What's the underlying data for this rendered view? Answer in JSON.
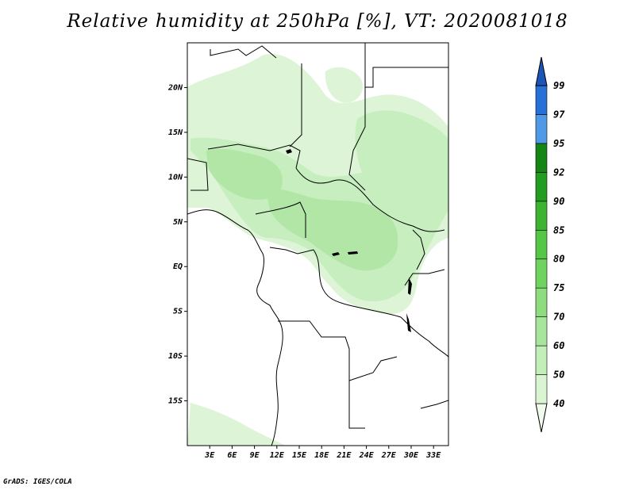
{
  "title": "Relative humidity at 250hPa [%], VT: 2020081018",
  "credit": "GrADS: IGES/COLA",
  "map": {
    "lon_range": [
      0,
      35
    ],
    "lat_range": [
      -20,
      25
    ],
    "lon_ticks": [
      {
        "value": 3,
        "label": "3E"
      },
      {
        "value": 6,
        "label": "6E"
      },
      {
        "value": 9,
        "label": "9E"
      },
      {
        "value": 12,
        "label": "12E"
      },
      {
        "value": 15,
        "label": "15E"
      },
      {
        "value": 18,
        "label": "18E"
      },
      {
        "value": 21,
        "label": "21E"
      },
      {
        "value": 24,
        "label": "24E"
      },
      {
        "value": 27,
        "label": "27E"
      },
      {
        "value": 30,
        "label": "30E"
      },
      {
        "value": 33,
        "label": "33E"
      }
    ],
    "lat_ticks": [
      {
        "value": 20,
        "label": "20N"
      },
      {
        "value": 15,
        "label": "15N"
      },
      {
        "value": 10,
        "label": "10N"
      },
      {
        "value": 5,
        "label": "5N"
      },
      {
        "value": 0,
        "label": "EQ"
      },
      {
        "value": -5,
        "label": "5S"
      },
      {
        "value": -10,
        "label": "10S"
      },
      {
        "value": -15,
        "label": "15S"
      }
    ]
  },
  "colorbar": {
    "levels": [
      "40",
      "50",
      "60",
      "70",
      "75",
      "80",
      "85",
      "90",
      "92",
      "95",
      "97",
      "99"
    ],
    "colors": [
      "#f0fbee",
      "#daf5d2",
      "#c2eeb8",
      "#a8e59c",
      "#8ddd7f",
      "#6fd35f",
      "#55c747",
      "#3cb432",
      "#239d20",
      "#138613",
      "#4f9ae8",
      "#2670d8",
      "#1b55b8"
    ]
  },
  "humidity_colors": {
    "light": "#ddf5d6",
    "medium": "#c6eebe",
    "darker": "#b1e6a6"
  }
}
